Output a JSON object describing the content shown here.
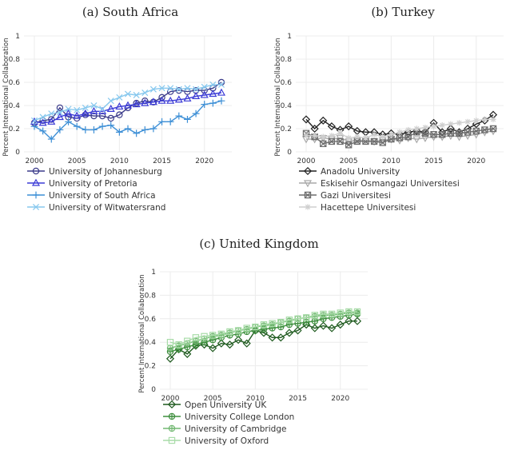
{
  "chart_data": [
    {
      "type": "line",
      "title": "(a) South Africa",
      "ylabel": "Percent International Collaboration",
      "xlabel": "",
      "x": [
        2000,
        2001,
        2002,
        2003,
        2004,
        2005,
        2006,
        2007,
        2008,
        2009,
        2010,
        2011,
        2012,
        2013,
        2014,
        2015,
        2016,
        2017,
        2018,
        2019,
        2020,
        2021,
        2022
      ],
      "xticks": [
        2000,
        2005,
        2010,
        2015,
        2020
      ],
      "yticks": [
        0,
        0.2,
        0.4,
        0.6,
        0.8,
        1
      ],
      "ylim": [
        0,
        1
      ],
      "grid": true,
      "legend": "below",
      "series": [
        {
          "name": "University of Johannesburg",
          "marker": "circle",
          "color": "#3b3b8a",
          "values": [
            0.25,
            0.27,
            0.28,
            0.38,
            0.3,
            0.29,
            0.32,
            0.31,
            0.31,
            0.29,
            0.32,
            0.38,
            0.42,
            0.44,
            0.43,
            0.47,
            0.52,
            0.53,
            0.52,
            0.53,
            0.53,
            0.55,
            0.6
          ]
        },
        {
          "name": "University of Pretoria",
          "marker": "triangle",
          "color": "#3b3bd6",
          "values": [
            0.26,
            0.25,
            0.26,
            0.3,
            0.33,
            0.31,
            0.33,
            0.35,
            0.35,
            0.37,
            0.39,
            0.4,
            0.41,
            0.42,
            0.43,
            0.44,
            0.44,
            0.45,
            0.46,
            0.48,
            0.49,
            0.5,
            0.51
          ]
        },
        {
          "name": "University of South Africa",
          "marker": "plus",
          "color": "#3d8fd6",
          "values": [
            0.22,
            0.18,
            0.11,
            0.19,
            0.26,
            0.22,
            0.19,
            0.19,
            0.22,
            0.23,
            0.17,
            0.2,
            0.16,
            0.19,
            0.2,
            0.26,
            0.26,
            0.31,
            0.28,
            0.33,
            0.41,
            0.42,
            0.44
          ]
        },
        {
          "name": "University of Witwatersrand",
          "marker": "x",
          "color": "#87c8ee",
          "values": [
            0.27,
            0.3,
            0.33,
            0.34,
            0.37,
            0.36,
            0.38,
            0.4,
            0.37,
            0.44,
            0.47,
            0.5,
            0.49,
            0.51,
            0.54,
            0.55,
            0.55,
            0.54,
            0.55,
            0.54,
            0.56,
            0.58,
            0.58
          ]
        }
      ]
    },
    {
      "type": "line",
      "title": "(b) Turkey",
      "ylabel": "Percent International Collaboration",
      "xlabel": "",
      "x": [
        2000,
        2001,
        2002,
        2003,
        2004,
        2005,
        2006,
        2007,
        2008,
        2009,
        2010,
        2011,
        2012,
        2013,
        2014,
        2015,
        2016,
        2017,
        2018,
        2019,
        2020,
        2021,
        2022
      ],
      "xticks": [
        2000,
        2005,
        2010,
        2015,
        2020
      ],
      "yticks": [
        0,
        0.2,
        0.4,
        0.6,
        0.8,
        1
      ],
      "ylim": [
        0,
        1
      ],
      "grid": true,
      "legend": "below",
      "series": [
        {
          "name": "Anadolu University",
          "marker": "diamond",
          "color": "#222222",
          "values": [
            0.28,
            0.2,
            0.27,
            0.22,
            0.19,
            0.22,
            0.18,
            0.17,
            0.17,
            0.15,
            0.16,
            0.15,
            0.17,
            0.18,
            0.17,
            0.25,
            0.17,
            0.2,
            0.17,
            0.2,
            0.24,
            0.27,
            0.32
          ]
        },
        {
          "name": "Eskisehir Osmangazi Universitesi",
          "marker": "triangle-down",
          "color": "#a9a9a9",
          "values": [
            0.11,
            0.11,
            0.12,
            0.11,
            0.12,
            0.09,
            0.1,
            0.1,
            0.09,
            0.1,
            0.11,
            0.1,
            0.12,
            0.11,
            0.12,
            0.13,
            0.13,
            0.14,
            0.13,
            0.14,
            0.15,
            0.17,
            0.18
          ]
        },
        {
          "name": "Gazi Universitesi",
          "marker": "square-x",
          "color": "#6d6d6d",
          "values": [
            0.16,
            0.13,
            0.07,
            0.09,
            0.09,
            0.06,
            0.09,
            0.09,
            0.09,
            0.08,
            0.11,
            0.12,
            0.13,
            0.17,
            0.16,
            0.15,
            0.15,
            0.16,
            0.16,
            0.17,
            0.18,
            0.19,
            0.2
          ]
        },
        {
          "name": "Hacettepe Universitesi",
          "marker": "star",
          "color": "#cfcfcf",
          "values": [
            0.14,
            0.14,
            0.13,
            0.14,
            0.16,
            0.12,
            0.13,
            0.12,
            0.15,
            0.13,
            0.15,
            0.17,
            0.19,
            0.2,
            0.21,
            0.22,
            0.23,
            0.24,
            0.25,
            0.26,
            0.27,
            0.28,
            0.28
          ]
        }
      ]
    },
    {
      "type": "line",
      "title": "(c) United Kingdom",
      "ylabel": "Percent International Collaboration",
      "xlabel": "",
      "x": [
        2000,
        2001,
        2002,
        2003,
        2004,
        2005,
        2006,
        2007,
        2008,
        2009,
        2010,
        2011,
        2012,
        2013,
        2014,
        2015,
        2016,
        2017,
        2018,
        2019,
        2020,
        2021,
        2022
      ],
      "xticks": [
        2000,
        2005,
        2010,
        2015,
        2020
      ],
      "yticks": [
        0,
        0.2,
        0.4,
        0.6,
        0.8,
        1
      ],
      "ylim": [
        0,
        1
      ],
      "grid": true,
      "legend": "below",
      "series": [
        {
          "name": "Open University UK",
          "marker": "diamond",
          "color": "#1e5a1e",
          "values": [
            0.26,
            0.34,
            0.3,
            0.37,
            0.38,
            0.35,
            0.39,
            0.38,
            0.42,
            0.39,
            0.5,
            0.48,
            0.44,
            0.44,
            0.48,
            0.5,
            0.55,
            0.52,
            0.54,
            0.52,
            0.55,
            0.58,
            0.58
          ]
        },
        {
          "name": "University College London",
          "marker": "circle-plus",
          "color": "#3f8f3f",
          "values": [
            0.32,
            0.34,
            0.36,
            0.38,
            0.4,
            0.42,
            0.44,
            0.46,
            0.47,
            0.49,
            0.5,
            0.51,
            0.52,
            0.53,
            0.55,
            0.56,
            0.57,
            0.58,
            0.6,
            0.61,
            0.62,
            0.63,
            0.64
          ]
        },
        {
          "name": "University of Cambridge",
          "marker": "circle-plus",
          "color": "#72b872",
          "values": [
            0.35,
            0.37,
            0.39,
            0.41,
            0.43,
            0.45,
            0.46,
            0.48,
            0.5,
            0.51,
            0.53,
            0.54,
            0.55,
            0.57,
            0.58,
            0.6,
            0.61,
            0.62,
            0.63,
            0.63,
            0.64,
            0.65,
            0.65
          ]
        },
        {
          "name": "University of Oxford",
          "marker": "square",
          "color": "#a8dca8",
          "values": [
            0.4,
            0.38,
            0.41,
            0.44,
            0.45,
            0.46,
            0.47,
            0.49,
            0.5,
            0.52,
            0.53,
            0.55,
            0.56,
            0.57,
            0.59,
            0.6,
            0.61,
            0.63,
            0.64,
            0.64,
            0.65,
            0.66,
            0.66
          ]
        }
      ]
    }
  ]
}
